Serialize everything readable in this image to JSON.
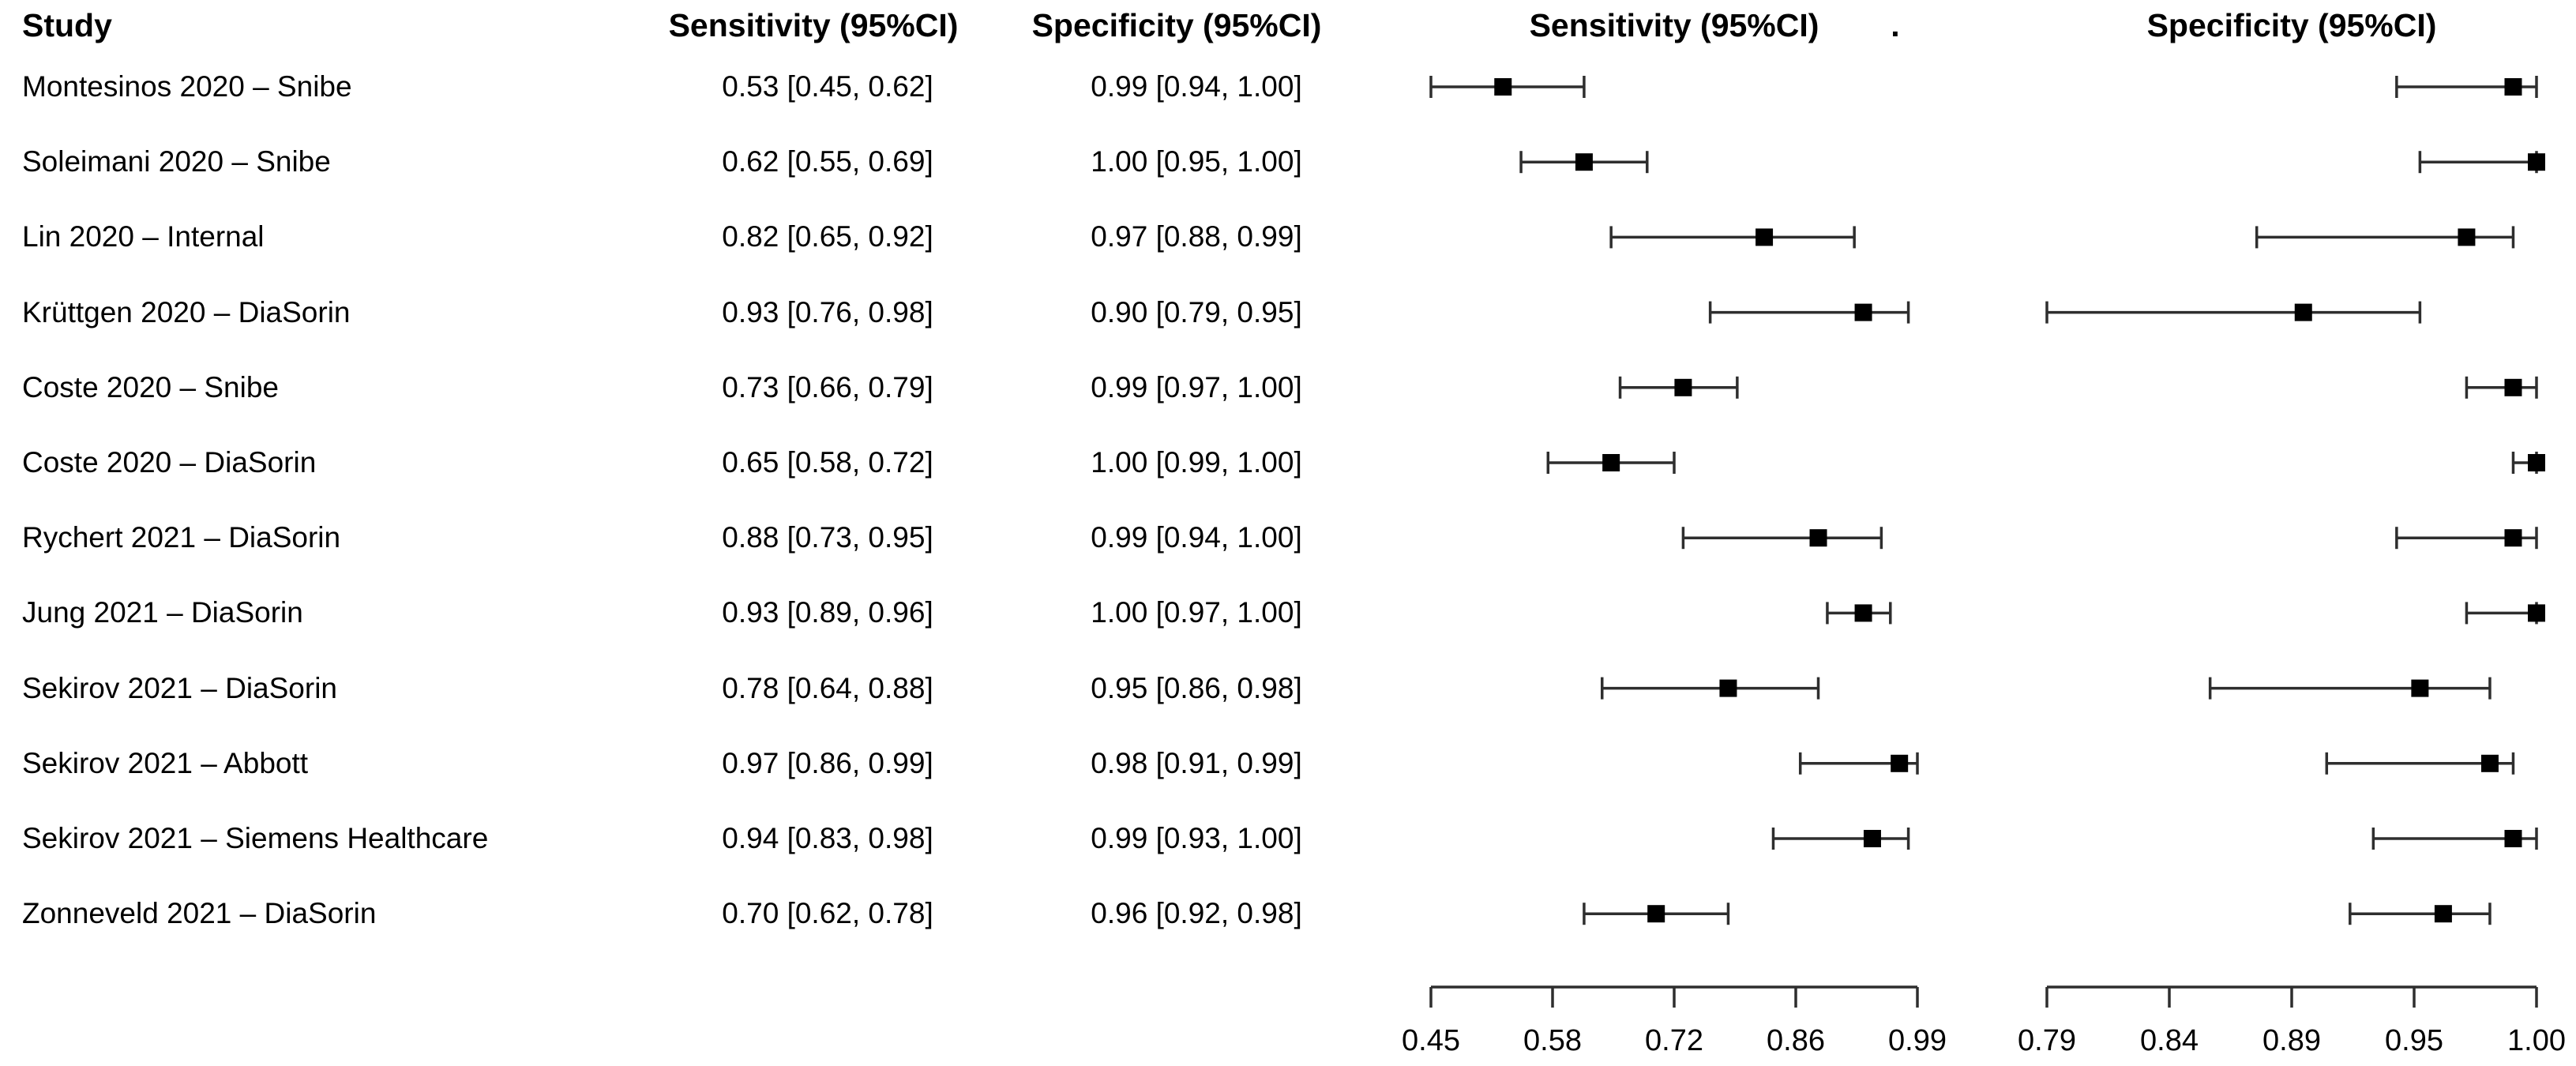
{
  "header": {
    "study": "Study",
    "sensitivity_col": "Sensitivity (95%CI)",
    "specificity_col": "Specificity (95%CI)",
    "sensitivity_plot": "Sensitivity (95%CI)",
    "separator_dot": ".",
    "specificity_plot": "Specificity (95%CI)"
  },
  "chart_data": {
    "type": "forest",
    "title": "",
    "legend": "none",
    "grid": "off",
    "panels": [
      {
        "name": "sensitivity",
        "header": "Sensitivity (95%CI)",
        "axis": {
          "min": 0.45,
          "max": 0.99,
          "ticks": [
            0.45,
            0.58,
            0.72,
            0.86,
            0.99
          ],
          "tick_labels": [
            "0.45",
            "0.58",
            "0.72",
            "0.86",
            "0.99"
          ]
        }
      },
      {
        "name": "specificity",
        "header": "Specificity (95%CI)",
        "axis": {
          "min": 0.79,
          "max": 1.0,
          "ticks": [
            0.79,
            0.84,
            0.89,
            0.95,
            1.0
          ],
          "tick_labels": [
            "0.79",
            "0.84",
            "0.89",
            "0.95",
            "1.00"
          ]
        }
      }
    ],
    "rows": [
      {
        "study": "Montesinos 2020 – Snibe",
        "sensitivity": {
          "est": 0.53,
          "lo": 0.45,
          "hi": 0.62,
          "label": "0.53 [0.45, 0.62]"
        },
        "specificity": {
          "est": 0.99,
          "lo": 0.94,
          "hi": 1.0,
          "label": "0.99 [0.94, 1.00]"
        }
      },
      {
        "study": "Soleimani 2020 – Snibe",
        "sensitivity": {
          "est": 0.62,
          "lo": 0.55,
          "hi": 0.69,
          "label": "0.62 [0.55, 0.69]"
        },
        "specificity": {
          "est": 1.0,
          "lo": 0.95,
          "hi": 1.0,
          "label": "1.00 [0.95, 1.00]"
        }
      },
      {
        "study": "Lin 2020 – Internal",
        "sensitivity": {
          "est": 0.82,
          "lo": 0.65,
          "hi": 0.92,
          "label": "0.82 [0.65, 0.92]"
        },
        "specificity": {
          "est": 0.97,
          "lo": 0.88,
          "hi": 0.99,
          "label": "0.97 [0.88, 0.99]"
        }
      },
      {
        "study": "Krüttgen 2020 – DiaSorin",
        "sensitivity": {
          "est": 0.93,
          "lo": 0.76,
          "hi": 0.98,
          "label": "0.93 [0.76, 0.98]"
        },
        "specificity": {
          "est": 0.9,
          "lo": 0.79,
          "hi": 0.95,
          "label": "0.90 [0.79, 0.95]"
        }
      },
      {
        "study": "Coste 2020 – Snibe",
        "sensitivity": {
          "est": 0.73,
          "lo": 0.66,
          "hi": 0.79,
          "label": "0.73 [0.66, 0.79]"
        },
        "specificity": {
          "est": 0.99,
          "lo": 0.97,
          "hi": 1.0,
          "label": "0.99 [0.97, 1.00]"
        }
      },
      {
        "study": "Coste 2020 – DiaSorin",
        "sensitivity": {
          "est": 0.65,
          "lo": 0.58,
          "hi": 0.72,
          "label": "0.65 [0.58, 0.72]"
        },
        "specificity": {
          "est": 1.0,
          "lo": 0.99,
          "hi": 1.0,
          "label": "1.00 [0.99, 1.00]"
        }
      },
      {
        "study": "Rychert 2021 – DiaSorin",
        "sensitivity": {
          "est": 0.88,
          "lo": 0.73,
          "hi": 0.95,
          "label": "0.88 [0.73, 0.95]"
        },
        "specificity": {
          "est": 0.99,
          "lo": 0.94,
          "hi": 1.0,
          "label": "0.99 [0.94, 1.00]"
        }
      },
      {
        "study": "Jung 2021 – DiaSorin",
        "sensitivity": {
          "est": 0.93,
          "lo": 0.89,
          "hi": 0.96,
          "label": "0.93 [0.89, 0.96]"
        },
        "specificity": {
          "est": 1.0,
          "lo": 0.97,
          "hi": 1.0,
          "label": "1.00 [0.97, 1.00]"
        }
      },
      {
        "study": "Sekirov 2021 – DiaSorin",
        "sensitivity": {
          "est": 0.78,
          "lo": 0.64,
          "hi": 0.88,
          "label": "0.78 [0.64, 0.88]"
        },
        "specificity": {
          "est": 0.95,
          "lo": 0.86,
          "hi": 0.98,
          "label": "0.95 [0.86, 0.98]"
        }
      },
      {
        "study": "Sekirov 2021 – Abbott",
        "sensitivity": {
          "est": 0.97,
          "lo": 0.86,
          "hi": 0.99,
          "label": "0.97 [0.86, 0.99]"
        },
        "specificity": {
          "est": 0.98,
          "lo": 0.91,
          "hi": 0.99,
          "label": "0.98 [0.91, 0.99]"
        }
      },
      {
        "study": "Sekirov 2021 – Siemens Healthcare",
        "sensitivity": {
          "est": 0.94,
          "lo": 0.83,
          "hi": 0.98,
          "label": "0.94 [0.83, 0.98]"
        },
        "specificity": {
          "est": 0.99,
          "lo": 0.93,
          "hi": 1.0,
          "label": "0.99 [0.93, 1.00]"
        }
      },
      {
        "study": "Zonneveld 2021 – DiaSorin",
        "sensitivity": {
          "est": 0.7,
          "lo": 0.62,
          "hi": 0.78,
          "label": "0.70 [0.62, 0.78]"
        },
        "specificity": {
          "est": 0.96,
          "lo": 0.92,
          "hi": 0.98,
          "label": "0.96 [0.92, 0.98]"
        }
      }
    ],
    "colors": {
      "marker": "#000000",
      "ci_line": "#2e2e2e",
      "axis": "#2e2e2e",
      "text": "#000000",
      "background": "#ffffff"
    }
  }
}
